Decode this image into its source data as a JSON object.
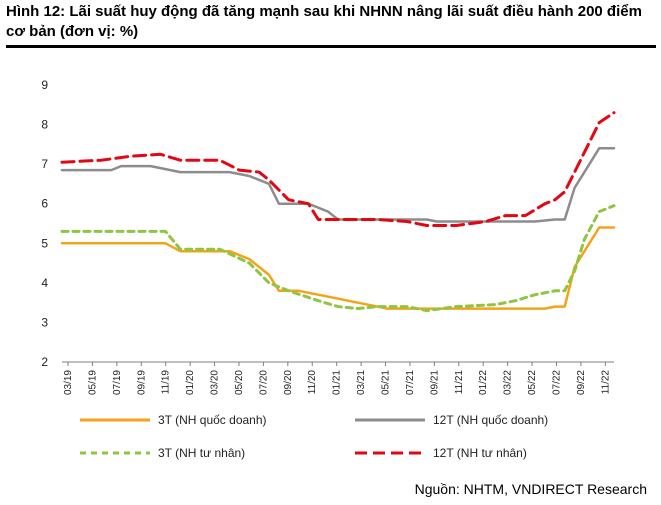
{
  "header": {
    "title": "Hình 12: Lãi suất huy động đã tăng mạnh sau khi NHNN nâng lãi suất điều hành 200 điểm cơ bản (đơn vị: %)"
  },
  "footer": {
    "source": "Nguồn: NHTM, VNDIRECT Research"
  },
  "chart_data": {
    "type": "line",
    "title": "",
    "xlabel": "",
    "ylabel": "",
    "ylim": [
      2,
      9
    ],
    "yticks": [
      2,
      3,
      4,
      5,
      6,
      7,
      8,
      9
    ],
    "grid": false,
    "legend_position": "bottom",
    "x_tick_labels": [
      "03/19",
      "05/19",
      "07/19",
      "09/19",
      "11/19",
      "01/20",
      "03/20",
      "05/20",
      "07/20",
      "09/20",
      "11/20",
      "01/21",
      "03/21",
      "05/21",
      "07/21",
      "09/21",
      "11/21",
      "01/22",
      "03/22",
      "05/22",
      "07/22",
      "09/22",
      "11/22"
    ],
    "series": [
      {
        "name": "3T (NH quốc doanh)",
        "color": "#f5a21b",
        "style": "solid",
        "x": [
          0,
          10.5,
          12,
          17,
          19,
          21,
          22,
          24,
          26,
          33,
          49,
          50,
          51,
          52,
          54.5,
          56
        ],
        "values": [
          5.0,
          5.0,
          4.8,
          4.8,
          4.6,
          4.2,
          3.8,
          3.8,
          3.7,
          3.35,
          3.35,
          3.4,
          3.4,
          4.4,
          5.4,
          5.4
        ]
      },
      {
        "name": "12T (NH quốc doanh)",
        "color": "#8c8c8c",
        "style": "solid",
        "x": [
          0,
          5,
          6,
          9,
          12,
          17,
          19,
          21,
          22,
          25,
          27,
          28,
          37,
          38,
          48,
          50,
          51,
          52,
          54.5,
          56
        ],
        "values": [
          6.85,
          6.85,
          6.95,
          6.95,
          6.8,
          6.8,
          6.7,
          6.5,
          6.0,
          6.0,
          5.8,
          5.6,
          5.6,
          5.55,
          5.55,
          5.6,
          5.6,
          6.4,
          7.4,
          7.4
        ]
      },
      {
        "name": "3T (NH tư nhân)",
        "color": "#8dc63f",
        "style": "dashed",
        "x": [
          0,
          10.5,
          12,
          16,
          19,
          21,
          23,
          26,
          28,
          30,
          32,
          35,
          37,
          40,
          44,
          46,
          48,
          50,
          51,
          52,
          53,
          54.5,
          56
        ],
        "values": [
          5.3,
          5.3,
          4.85,
          4.85,
          4.5,
          4.0,
          3.8,
          3.55,
          3.4,
          3.35,
          3.4,
          3.4,
          3.3,
          3.4,
          3.45,
          3.55,
          3.7,
          3.8,
          3.8,
          4.3,
          5.1,
          5.8,
          5.95
        ]
      },
      {
        "name": "12T (NH tư nhân)",
        "color": "#e30613",
        "style": "dashed",
        "x": [
          0,
          4,
          7,
          10,
          12,
          16,
          18,
          20,
          21,
          23,
          25,
          26,
          28,
          30,
          32,
          35,
          37,
          40,
          43,
          45,
          47,
          49,
          50,
          51,
          52,
          53,
          54.5,
          56
        ],
        "values": [
          7.05,
          7.1,
          7.2,
          7.25,
          7.1,
          7.1,
          6.85,
          6.8,
          6.6,
          6.1,
          6.0,
          5.6,
          5.6,
          5.6,
          5.6,
          5.55,
          5.45,
          5.45,
          5.55,
          5.7,
          5.7,
          6.0,
          6.1,
          6.3,
          6.8,
          7.3,
          8.05,
          8.3
        ]
      }
    ]
  }
}
